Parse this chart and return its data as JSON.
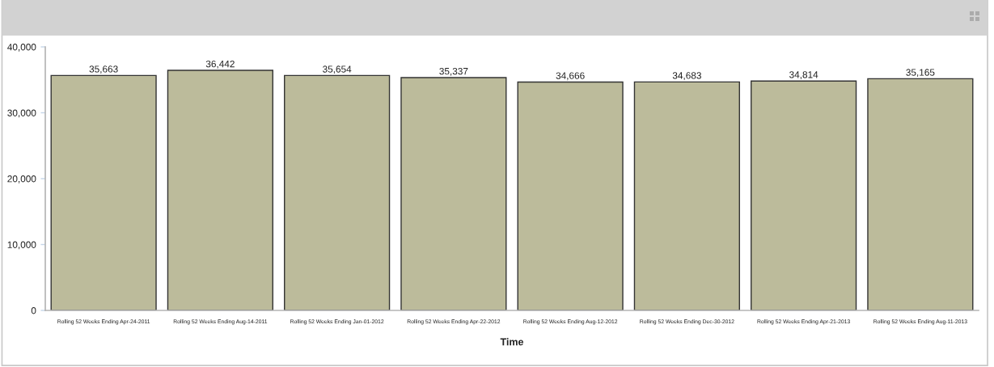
{
  "chart_data": {
    "type": "bar",
    "categories": [
      "Rolling 52 Weeks Ending Apr-24-2011",
      "Rolling 52 Weeks Ending Aug-14-2011",
      "Rolling 52 Weeks Ending Jan-01-2012",
      "Rolling 52 Weeks Ending Apr-22-2012",
      "Rolling 52 Weeks Ending Aug-12-2012",
      "Rolling 52 Weeks Ending Dec-30-2012",
      "Rolling 52 Weeks Ending Apr-21-2013",
      "Rolling 52 Weeks Ending Aug-11-2013"
    ],
    "values": [
      35663,
      36442,
      35654,
      35337,
      34666,
      34683,
      34814,
      35165
    ],
    "color": "#bcbb9b",
    "value_labels": [
      "35,663",
      "36,442",
      "35,654",
      "35,337",
      "34,666",
      "34,683",
      "34,814",
      "35,165"
    ],
    "xlabel": "Time",
    "ylim": [
      0,
      40000
    ],
    "yticks": [
      {
        "value": 0,
        "label": "0"
      },
      {
        "value": 10000,
        "label": "10,000"
      },
      {
        "value": 20000,
        "label": "20,000"
      },
      {
        "value": 30000,
        "label": "30,000"
      },
      {
        "value": 40000,
        "label": "40,000"
      }
    ],
    "grid": false,
    "legend": false
  }
}
